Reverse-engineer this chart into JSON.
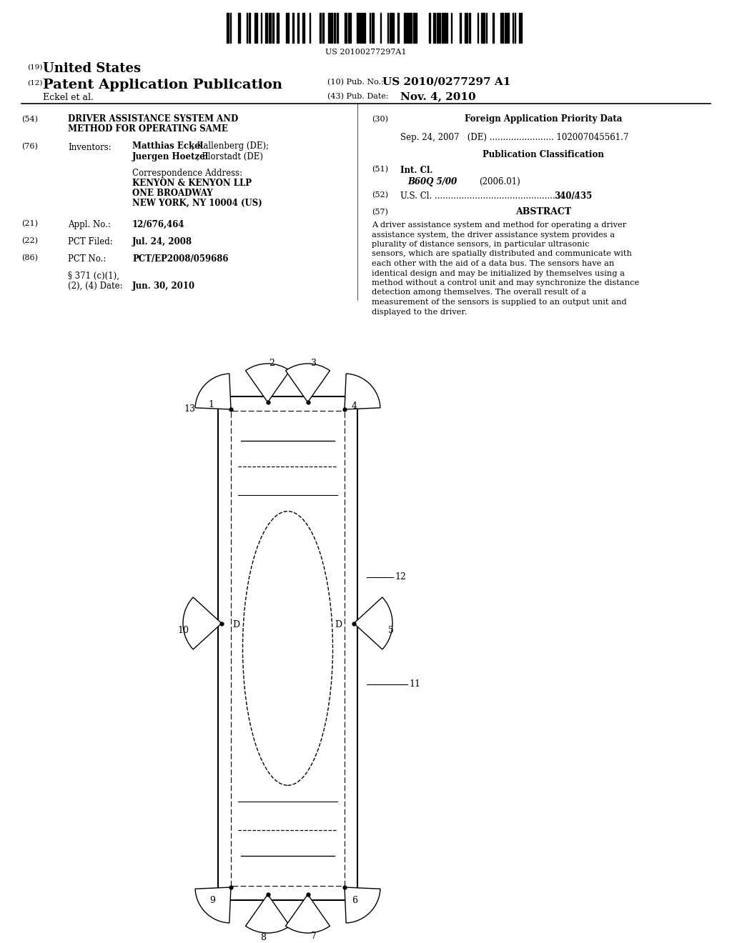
{
  "barcode_text": "US 20100277297A1",
  "header_19": "(19)",
  "header_country": "United States",
  "header_12": "(12)",
  "header_pub": "Patent Application Publication",
  "header_10_label": "(10) Pub. No.:",
  "header_10_value": "US 2010/0277297 A1",
  "header_author": "Eckel et al.",
  "header_43_label": "(43) Pub. Date:",
  "header_43_value": "Nov. 4, 2010",
  "field_54_label": "(54)",
  "field_54_line1": "DRIVER ASSISTANCE SYSTEM AND",
  "field_54_line2": "METHOD FOR OPERATING SAME",
  "field_76_label": "(76)",
  "field_76_key": "Inventors:",
  "field_inv1_bold": "Matthias Eckel",
  "field_inv1_rest": ", Kallenberg (DE);",
  "field_inv2_bold": "Juergen Hoetzel",
  "field_inv2_rest": ", Florstadt (DE)",
  "field_corr_line0": "Correspondence Address:",
  "field_corr_line1": "KENYON & KENYON LLP",
  "field_corr_line2": "ONE BROADWAY",
  "field_corr_line3": "NEW YORK, NY 10004 (US)",
  "field_21_label": "(21)",
  "field_21_key": "Appl. No.:",
  "field_21_value": "12/676,464",
  "field_22_label": "(22)",
  "field_22_key": "PCT Filed:",
  "field_22_value": "Jul. 24, 2008",
  "field_86_label": "(86)",
  "field_86_key": "PCT No.:",
  "field_86_value": "PCT/EP2008/059686",
  "field_371_line1": "§ 371 (c)(1),",
  "field_371_line2": "(2), (4) Date:",
  "field_371_value": "Jun. 30, 2010",
  "field_30_label": "(30)",
  "field_30_title": "Foreign Application Priority Data",
  "field_30_entry": "Sep. 24, 2007   (DE) ........................ 102007045561.7",
  "field_pub_class": "Publication Classification",
  "field_51_label": "(51)",
  "field_51_key": "Int. Cl.",
  "field_51_value": "B60Q 5/00",
  "field_51_date": "(2006.01)",
  "field_52_label": "(52)",
  "field_52_dots": "U.S. Cl. .....................................................",
  "field_52_value": "340/435",
  "field_57_label": "(57)",
  "field_57_title": "ABSTRACT",
  "abstract_text": "A driver assistance system and method for operating a driver assistance system, the driver assistance system provides a plurality of distance sensors, in particular ultrasonic sensors, which are spatially distributed and communicate with each other with the aid of a data bus. The sensors have an identical design and may be initialized by themselves using a method without a control unit and may synchronize the distance detection among themselves. The overall result of a measurement of the sensors is supplied to an output unit and displayed to the driver.",
  "bg_color": "#ffffff",
  "text_color": "#000000"
}
